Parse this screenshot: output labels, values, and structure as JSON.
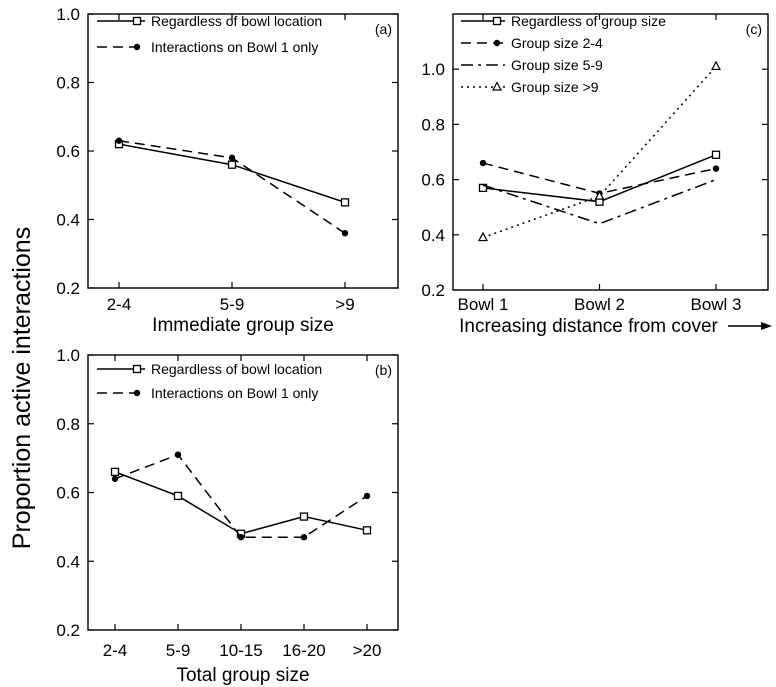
{
  "y_axis_label": "Proportion active interactions",
  "chart_data": [
    {
      "id": "a",
      "type": "line",
      "panel_label": "(a)",
      "xlabel": "Immediate group size",
      "categories": [
        "2-4",
        "5-9",
        ">9"
      ],
      "ylim": [
        0.2,
        1.0
      ],
      "yticks": [
        0.2,
        0.4,
        0.6,
        0.8,
        1.0
      ],
      "tick_labels": [
        "0.2",
        "0.4",
        "0.6",
        "0.8",
        "1.0"
      ],
      "legend_position": "top-left",
      "series": [
        {
          "name": "Regardless of bowl location",
          "values": [
            0.62,
            0.56,
            0.45
          ],
          "line": "solid",
          "marker": "square"
        },
        {
          "name": "Interactions on Bowl 1 only",
          "values": [
            0.63,
            0.58,
            0.36
          ],
          "line": "dashed",
          "marker": "circle"
        }
      ]
    },
    {
      "id": "b",
      "type": "line",
      "panel_label": "(b)",
      "xlabel": "Total group size",
      "categories": [
        "2-4",
        "5-9",
        "10-15",
        "16-20",
        ">20"
      ],
      "ylim": [
        0.2,
        1.0
      ],
      "yticks": [
        0.2,
        0.4,
        0.6,
        0.8,
        1.0
      ],
      "tick_labels": [
        "0.2",
        "0.4",
        "0.6",
        "0.8",
        "1.0"
      ],
      "legend_position": "top-left",
      "series": [
        {
          "name": "Regardless of bowl location",
          "values": [
            0.66,
            0.59,
            0.48,
            0.53,
            0.49
          ],
          "line": "solid",
          "marker": "square"
        },
        {
          "name": "Interactions on Bowl 1 only",
          "values": [
            0.64,
            0.71,
            0.47,
            0.47,
            0.59
          ],
          "line": "dashed",
          "marker": "circle"
        }
      ]
    },
    {
      "id": "c",
      "type": "line",
      "panel_label": "(c)",
      "xlabel": "Increasing distance from cover",
      "xlabel_arrow": true,
      "categories": [
        "Bowl 1",
        "Bowl 2",
        "Bowl 3"
      ],
      "ylim": [
        0.2,
        1.2
      ],
      "yticks": [
        0.2,
        0.4,
        0.6,
        0.8,
        1.0
      ],
      "tick_labels": [
        "0.2",
        "0.4",
        "0.6",
        "0.8",
        "1.0"
      ],
      "legend_position": "top-left",
      "series": [
        {
          "name": "Regardless of group size",
          "values": [
            0.57,
            0.52,
            0.69
          ],
          "line": "solid",
          "marker": "square"
        },
        {
          "name": "Group size 2-4",
          "values": [
            0.66,
            0.55,
            0.64
          ],
          "line": "dashed",
          "marker": "circle"
        },
        {
          "name": "Group size 5-9",
          "values": [
            0.58,
            0.44,
            0.6
          ],
          "line": "dashdot",
          "marker": "none"
        },
        {
          "name": "Group size >9",
          "values": [
            0.39,
            0.54,
            1.01
          ],
          "line": "dotted",
          "marker": "triangle"
        }
      ]
    }
  ]
}
